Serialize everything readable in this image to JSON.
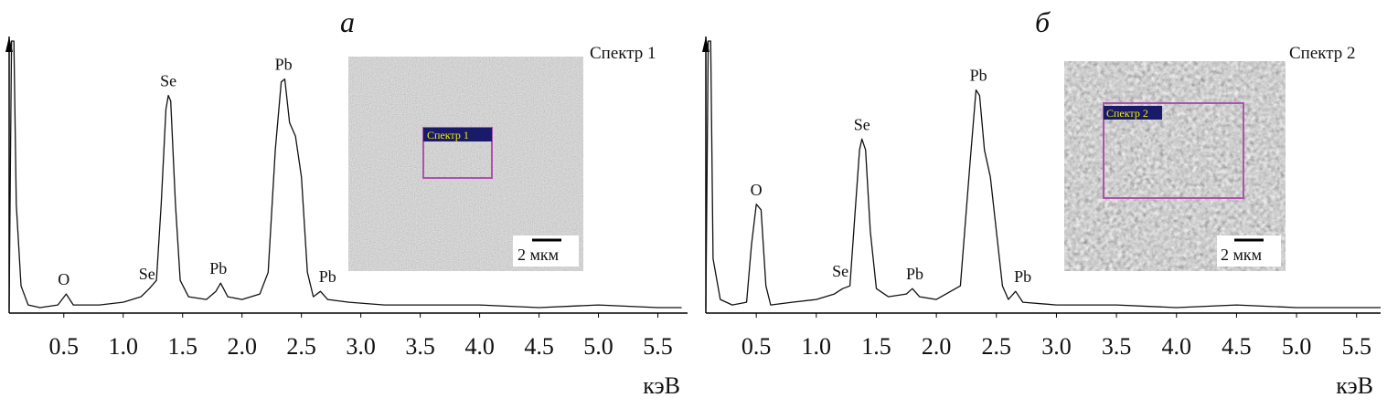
{
  "chart_data": [
    {
      "type": "line",
      "title": "а",
      "x_label": "кэВ",
      "xlim": [
        0.04,
        5.75
      ],
      "ylim": [
        0,
        100
      ],
      "xticks": [
        0.5,
        {
          "value": 1,
          "label": "1.0"
        },
        1.5,
        {
          "value": 2,
          "label": "2.0"
        },
        2.5,
        {
          "value": 3,
          "label": "3.0"
        },
        3.5,
        {
          "value": 4,
          "label": "4.0"
        },
        4.5,
        {
          "value": 5,
          "label": "5.0"
        },
        5.5
      ],
      "series": [
        {
          "name": "Спектр 1",
          "color": "#111111",
          "x": [
            0.04,
            0.06,
            0.08,
            0.1,
            0.14,
            0.2,
            0.3,
            0.45,
            0.52,
            0.58,
            0.8,
            1.0,
            1.15,
            1.22,
            1.28,
            1.32,
            1.36,
            1.38,
            1.4,
            1.44,
            1.48,
            1.55,
            1.7,
            1.78,
            1.82,
            1.88,
            2.0,
            2.15,
            2.22,
            2.28,
            2.33,
            2.36,
            2.4,
            2.45,
            2.5,
            2.55,
            2.6,
            2.66,
            2.72,
            2.9,
            3.2,
            3.5,
            4.0,
            4.5,
            5.0,
            5.5,
            5.7
          ],
          "values": [
            2,
            100,
            100,
            40,
            10,
            3,
            2,
            3,
            7,
            3,
            3,
            4,
            6,
            9,
            12,
            40,
            75,
            80,
            78,
            40,
            12,
            6,
            5,
            8,
            11,
            6,
            5,
            7,
            15,
            60,
            85,
            86,
            70,
            65,
            50,
            15,
            6,
            8,
            5,
            4,
            3,
            3,
            3,
            2,
            3,
            2,
            2
          ]
        }
      ],
      "annotations": [
        {
          "text": "O",
          "x": 0.5,
          "y": 7
        },
        {
          "text": "Se",
          "x": 1.2,
          "y": 9
        },
        {
          "text": "Se",
          "x": 1.38,
          "y": 80
        },
        {
          "text": "Pb",
          "x": 1.8,
          "y": 11
        },
        {
          "text": "Pb",
          "x": 2.35,
          "y": 86
        },
        {
          "text": "Pb",
          "x": 2.72,
          "y": 8
        }
      ],
      "inset": {
        "region_label": "Спектр 1",
        "scale_bar": "2 мкм"
      }
    },
    {
      "type": "line",
      "title": "б",
      "x_label": "кэВ",
      "xlim": [
        0.08,
        5.7
      ],
      "ylim": [
        0,
        100
      ],
      "xticks": [
        0.5,
        {
          "value": 1,
          "label": "1.0"
        },
        1.5,
        {
          "value": 2,
          "label": "2.0"
        },
        2.5,
        {
          "value": 3,
          "label": "3.0"
        },
        3.5,
        {
          "value": 4,
          "label": "4.0"
        },
        4.5,
        {
          "value": 5,
          "label": "5.0"
        },
        5.5
      ],
      "series": [
        {
          "name": "Спектр 2",
          "color": "#111111",
          "x": [
            0.08,
            0.1,
            0.12,
            0.14,
            0.2,
            0.3,
            0.42,
            0.46,
            0.5,
            0.54,
            0.58,
            0.62,
            0.8,
            1.0,
            1.15,
            1.22,
            1.28,
            1.32,
            1.36,
            1.38,
            1.41,
            1.45,
            1.5,
            1.6,
            1.75,
            1.8,
            1.86,
            2.0,
            2.2,
            2.28,
            2.33,
            2.36,
            2.4,
            2.45,
            2.5,
            2.55,
            2.6,
            2.66,
            2.72,
            3.0,
            3.5,
            4.0,
            4.5,
            5.0,
            5.7
          ],
          "values": [
            2,
            100,
            100,
            20,
            5,
            3,
            4,
            25,
            40,
            38,
            10,
            3,
            4,
            5,
            7,
            9,
            10,
            35,
            60,
            64,
            60,
            30,
            9,
            6,
            7,
            9,
            6,
            5,
            10,
            55,
            82,
            80,
            60,
            50,
            30,
            10,
            5,
            8,
            4,
            3,
            3,
            2,
            3,
            2,
            2
          ]
        }
      ],
      "annotations": [
        {
          "text": "O",
          "x": 0.5,
          "y": 40
        },
        {
          "text": "Se",
          "x": 1.2,
          "y": 10
        },
        {
          "text": "Se",
          "x": 1.38,
          "y": 64
        },
        {
          "text": "Pb",
          "x": 1.82,
          "y": 9
        },
        {
          "text": "Pb",
          "x": 2.35,
          "y": 82
        },
        {
          "text": "Pb",
          "x": 2.72,
          "y": 8
        }
      ],
      "inset": {
        "region_label": "Спектр 2",
        "scale_bar": "2 мкм"
      }
    }
  ]
}
